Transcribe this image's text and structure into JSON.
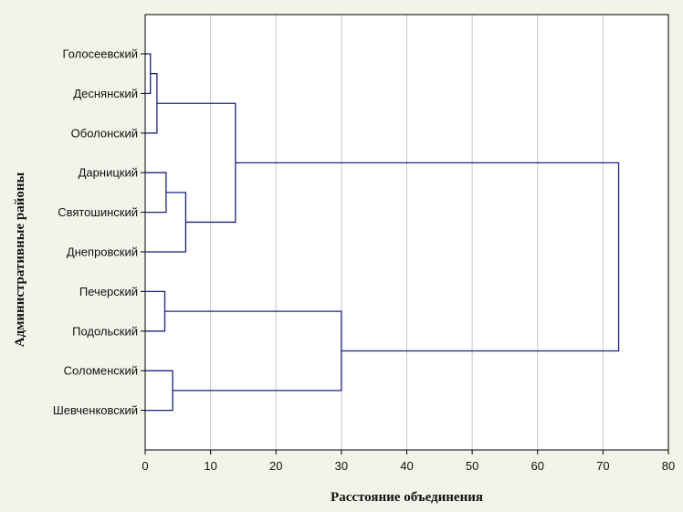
{
  "chart_data": {
    "type": "dendrogram",
    "orientation": "horizontal",
    "title": "",
    "xlabel": "Расстояние объединения",
    "ylabel": "Административные районы",
    "xlim": [
      0,
      80
    ],
    "xticks": [
      "0",
      "10",
      "20",
      "30",
      "40",
      "50",
      "60",
      "70",
      "80"
    ],
    "grid": true,
    "leaves": [
      "Голосеевский",
      "Деснянский",
      "Оболонский",
      "Дарницкий",
      "Святошинский",
      "Днепровский",
      "Печерский",
      "Подольский",
      "Соломенский",
      "Шевченковский"
    ],
    "merges": [
      {
        "a": "leaf:0",
        "b": "leaf:1",
        "distance": 0.8
      },
      {
        "a": "node:0",
        "b": "leaf:2",
        "distance": 1.8
      },
      {
        "a": "leaf:3",
        "b": "leaf:4",
        "distance": 3.2
      },
      {
        "a": "node:2",
        "b": "leaf:5",
        "distance": 6.2
      },
      {
        "a": "node:1",
        "b": "node:3",
        "distance": 13.8
      },
      {
        "a": "leaf:6",
        "b": "leaf:7",
        "distance": 3.0
      },
      {
        "a": "leaf:8",
        "b": "leaf:9",
        "distance": 4.2
      },
      {
        "a": "node:5",
        "b": "node:6",
        "distance": 30.0
      },
      {
        "a": "node:4",
        "b": "node:7",
        "distance": 72.4
      }
    ],
    "colors": {
      "background": "#f3f4e9",
      "plot_background": "#ffffff",
      "lines": "#1a237e",
      "grid": "#c8c8c8",
      "axis": "#000000"
    }
  }
}
